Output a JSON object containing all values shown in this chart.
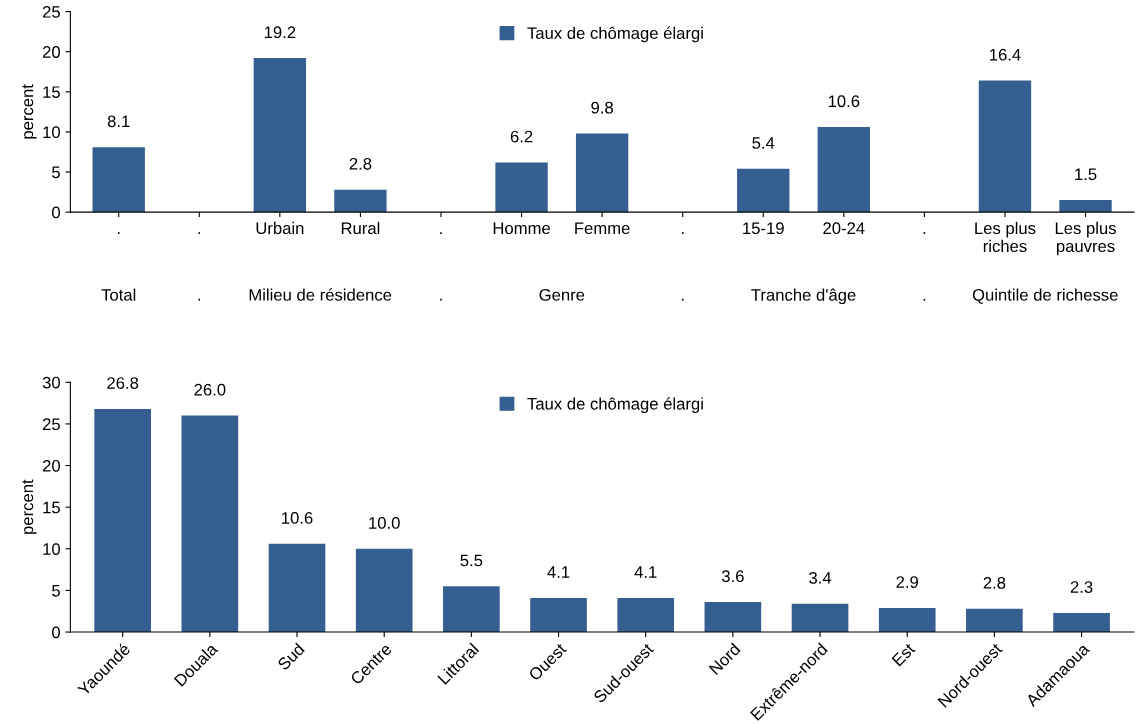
{
  "chart_data": [
    {
      "type": "bar",
      "ylabel": "percent",
      "categories": [
        ".",
        ".",
        "Urbain",
        "Rural",
        ".",
        "Homme",
        "Femme",
        ".",
        "15-19",
        "20-24",
        ".",
        "Les plus\nriches",
        "Les plus\npauvres"
      ],
      "series": [
        {
          "name": "Taux de chômage élargi",
          "color": "#355f91",
          "values": [
            8.1,
            null,
            19.2,
            2.8,
            null,
            6.2,
            9.8,
            null,
            5.4,
            10.6,
            null,
            16.4,
            1.5
          ]
        }
      ],
      "ylim": [
        0,
        25
      ],
      "yticks": [
        0,
        5,
        10,
        15,
        20,
        25
      ],
      "data_labels": true,
      "legend": "top",
      "grid": false,
      "annotations": [
        "Total",
        ".",
        "Milieu de résidence",
        ".",
        "Genre",
        ".",
        "Tranche d'âge",
        ".",
        "Quintile de richesse"
      ]
    },
    {
      "type": "bar",
      "ylabel": "percent",
      "categories": [
        "Yaoundé",
        "Douala",
        "Sud",
        "Centre",
        "Littoral",
        "Ouest",
        "Sud-ouest",
        "Nord",
        "Extrême-nord",
        "Est",
        "Nord-ouest",
        "Adamaoua"
      ],
      "series": [
        {
          "name": "Taux de chômage élargi",
          "color": "#355f91",
          "values": [
            26.8,
            26.0,
            10.6,
            10.0,
            5.5,
            4.1,
            4.1,
            3.6,
            3.4,
            2.9,
            2.8,
            2.3
          ],
          "value_labels": [
            "26.8",
            "26.0",
            "10.6",
            "10.0",
            "5.5",
            "4.1",
            "4.1",
            "3.6",
            "3.4",
            "2.9",
            "2.8",
            "2.3"
          ]
        }
      ],
      "ylim": [
        0,
        30
      ],
      "yticks": [
        0,
        5,
        10,
        15,
        20,
        25,
        30
      ],
      "legend": "top",
      "grid": false
    }
  ]
}
